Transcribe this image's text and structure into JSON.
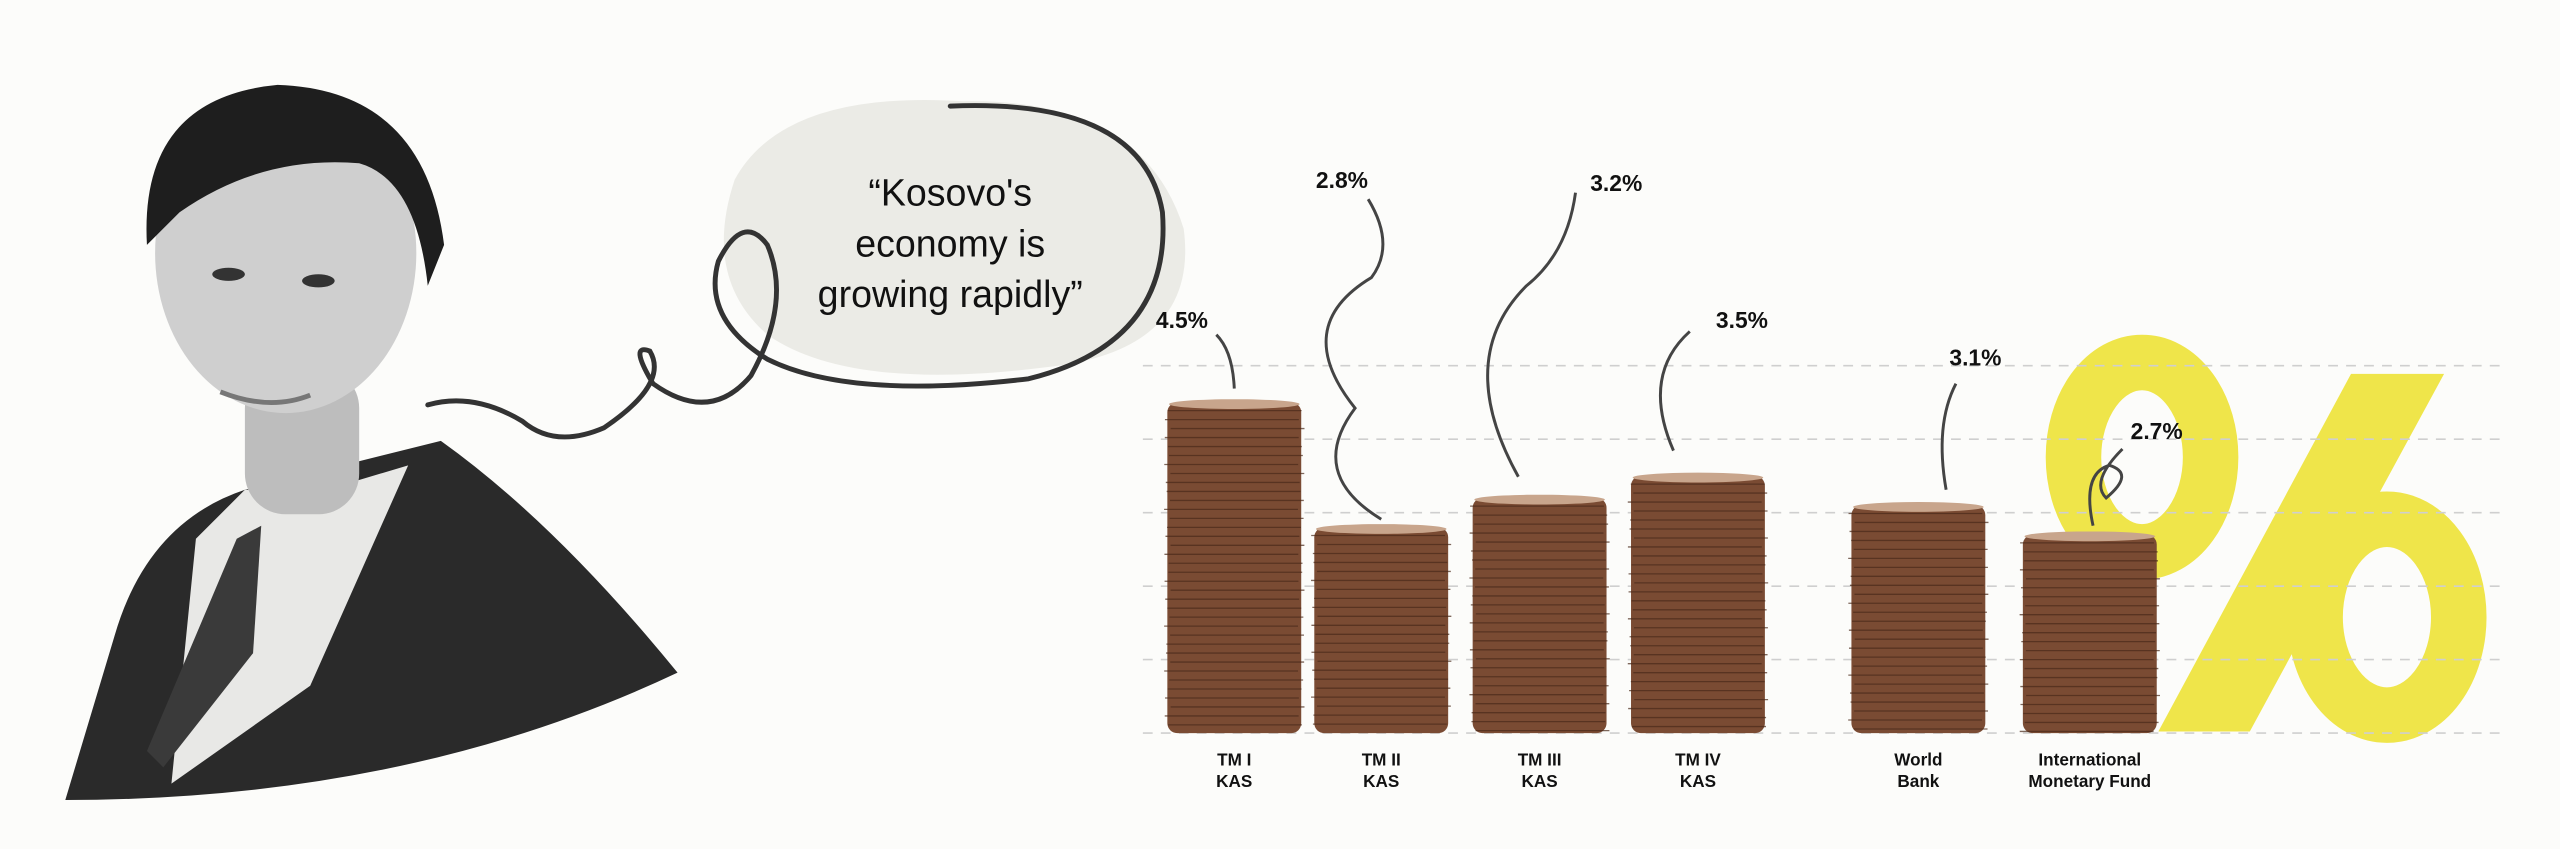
{
  "chart_data": {
    "type": "bar",
    "annotation": [
      "“Kosovo's",
      "economy is",
      "growing rapidly”"
    ],
    "categories": [
      [
        "TM   I",
        "KAS"
      ],
      [
        "TM   II",
        "KAS"
      ],
      [
        "TM   III",
        "KAS"
      ],
      [
        "TM   IV",
        "KAS"
      ],
      [
        "World",
        "Bank"
      ],
      [
        "International",
        "Monetary Fund"
      ]
    ],
    "values": [
      4.5,
      2.8,
      3.2,
      3.5,
      3.1,
      2.7
    ],
    "value_labels": [
      "4.5%",
      "2.8%",
      "3.2%",
      "3.5%",
      "3.1%",
      "2.7%"
    ],
    "color": "#7a4b33",
    "ylim": [
      0,
      5
    ],
    "yticks": [
      1,
      2,
      3,
      4,
      5
    ],
    "grid": true
  }
}
